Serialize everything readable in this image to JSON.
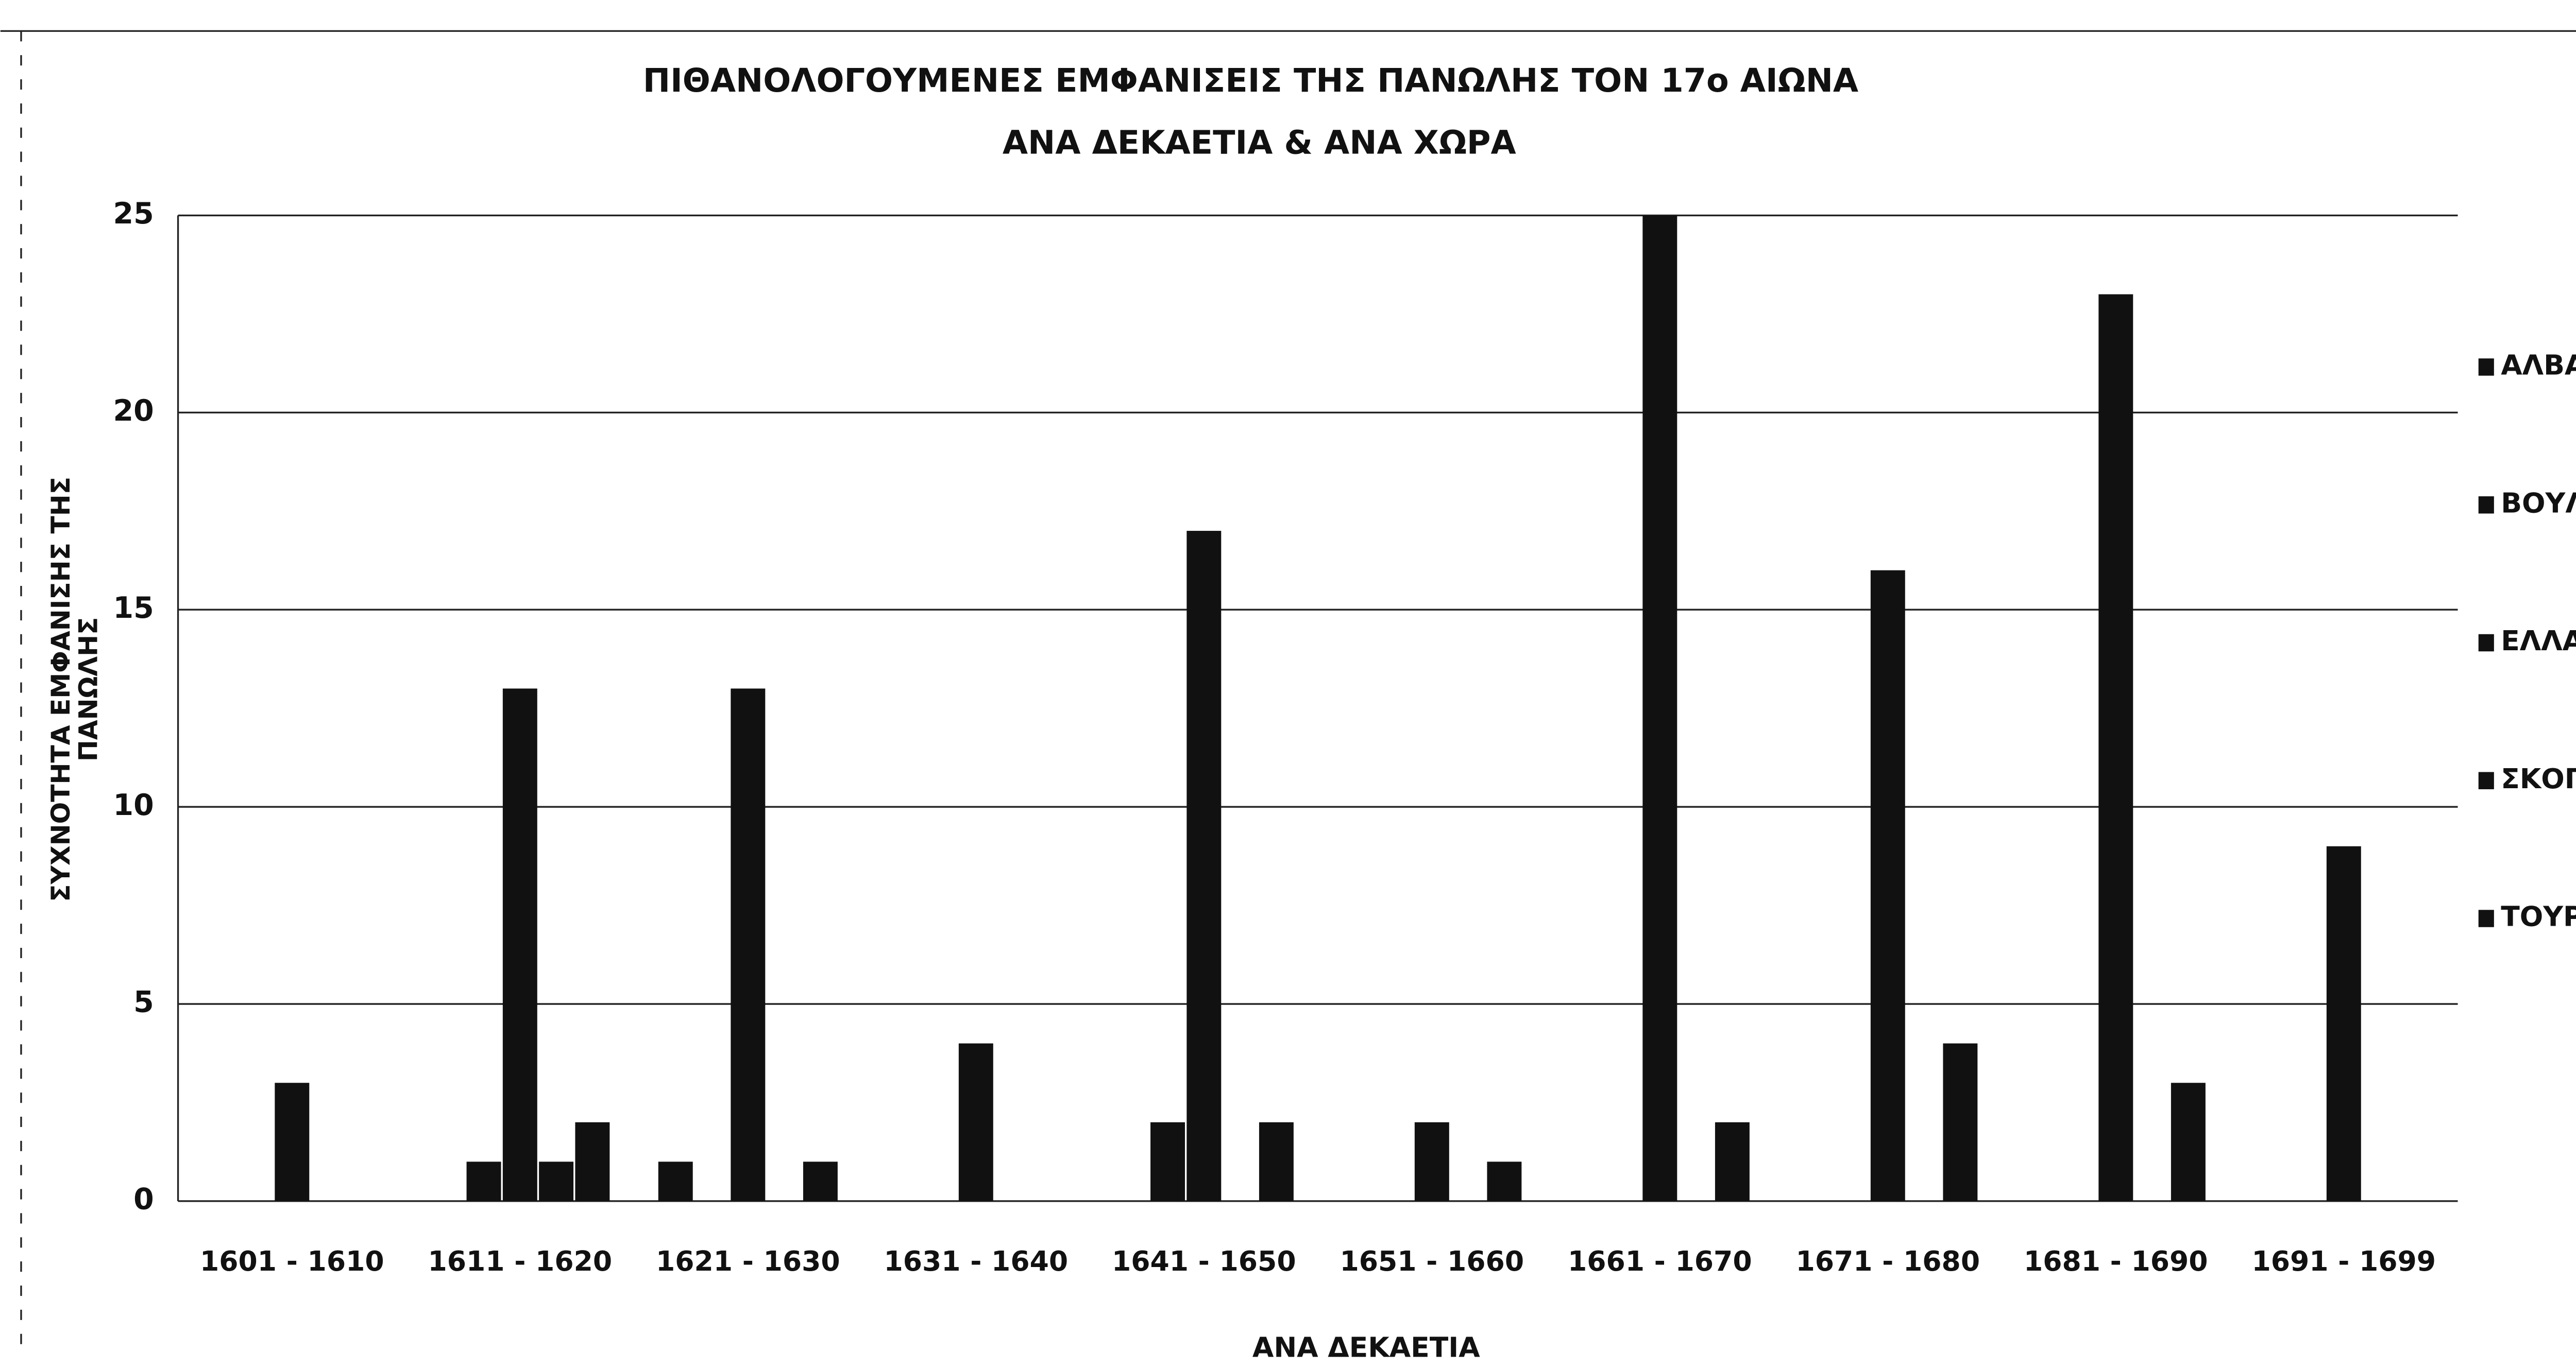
{
  "chart_data": {
    "type": "bar",
    "title": [
      "ΠΙΘΑΝΟΛΟΓΟΥΜΕΝΕΣ ΕΜΦΑΝΙΣΕΙΣ ΤΗΣ ΠΑΝΩΛΗΣ ΤΟΝ 17ο ΑΙΩΝΑ",
      "ΑΝΑ ΔΕΚΑΕΤΙΑ & ΑΝΑ ΧΩΡΑ"
    ],
    "y_label": [
      "ΣΥΧΝΟΤΗΤΑ ΕΜΦΑΝΙΣΗΣ ΤΗΣ",
      "ΠΑΝΩΛΗΣ"
    ],
    "x_label": "ΑΝΑ ΔΕΚΑΕΤΙΑ",
    "categories": [
      "1601 - 1610",
      "1611 - 1620",
      "1621 - 1630",
      "1631 - 1640",
      "1641 - 1650",
      "1651 - 1660",
      "1661 - 1670",
      "1671 - 1680",
      "1681 - 1690",
      "1691 - 1699"
    ],
    "series": [
      {
        "name": "ΑΛΒΑΝΙΑ",
        "color": "#111111",
        "values": [
          0,
          0,
          1,
          0,
          0,
          0,
          0,
          0,
          0,
          0
        ]
      },
      {
        "name": "ΒΟΥΛΓΑΡΙΑ",
        "color": "#111111",
        "values": [
          0,
          1,
          0,
          0,
          2,
          0,
          0,
          0,
          0,
          0
        ]
      },
      {
        "name": "ΕΛΛΑΔΑ",
        "color": "#111111",
        "values": [
          3,
          13,
          13,
          4,
          17,
          2,
          25,
          16,
          23,
          9
        ]
      },
      {
        "name": "ΣΚΟΠΙΑ",
        "color": "#111111",
        "values": [
          0,
          1,
          0,
          0,
          0,
          0,
          0,
          0,
          0,
          0
        ]
      },
      {
        "name": "ΤΟΥΡΚΙΑ",
        "color": "#111111",
        "values": [
          0,
          2,
          1,
          0,
          2,
          1,
          2,
          4,
          3,
          0
        ]
      }
    ],
    "ylim": [
      0,
      25
    ],
    "yticks": [
      0,
      5,
      10,
      15,
      20,
      25
    ],
    "grid": true,
    "legend": "right"
  }
}
